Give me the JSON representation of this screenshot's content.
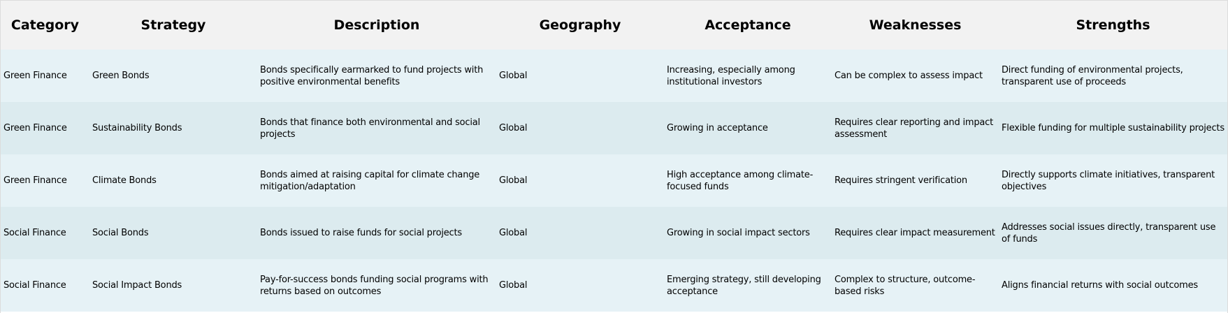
{
  "table": {
    "headers": [
      "Category",
      "Strategy",
      "Description",
      "Geography",
      "Acceptance",
      "Weaknesses",
      "Strengths"
    ],
    "rows": [
      {
        "category": "Green Finance",
        "strategy": "Green Bonds",
        "description": "Bonds specifically earmarked to fund projects with positive environmental benefits",
        "geography": "Global",
        "acceptance": "Increasing, especially among institutional investors",
        "weaknesses": "Can be complex to assess impact",
        "strengths": "Direct funding of environmental projects, transparent use of proceeds"
      },
      {
        "category": "Green Finance",
        "strategy": "Sustainability Bonds",
        "description": "Bonds that finance both environmental and social projects",
        "geography": "Global",
        "acceptance": "Growing in acceptance",
        "weaknesses": "Requires clear reporting and impact assessment",
        "strengths": "Flexible funding for multiple sustainability projects"
      },
      {
        "category": "Green Finance",
        "strategy": "Climate Bonds",
        "description": "Bonds aimed at raising capital for climate change mitigation/adaptation",
        "geography": "Global",
        "acceptance": "High acceptance among climate-focused funds",
        "weaknesses": "Requires stringent verification",
        "strengths": "Directly supports climate initiatives, transparent objectives"
      },
      {
        "category": "Social Finance",
        "strategy": "Social Bonds",
        "description": "Bonds issued to raise funds for social projects",
        "geography": "Global",
        "acceptance": "Growing in social impact sectors",
        "weaknesses": "Requires clear impact measurement",
        "strengths": "Addresses social issues directly, transparent use of funds"
      },
      {
        "category": "Social Finance",
        "strategy": "Social Impact Bonds",
        "description": "Pay-for-success bonds funding social programs with returns based on outcomes",
        "geography": "Global",
        "acceptance": "Emerging strategy, still developing acceptance",
        "weaknesses": "Complex to structure, outcome-based risks",
        "strengths": "Aligns financial returns with social outcomes"
      }
    ]
  },
  "colors": {
    "header_bg": "#f2f2f2",
    "row_odd_bg": "#e6f2f6",
    "row_even_bg": "#dcebef"
  }
}
